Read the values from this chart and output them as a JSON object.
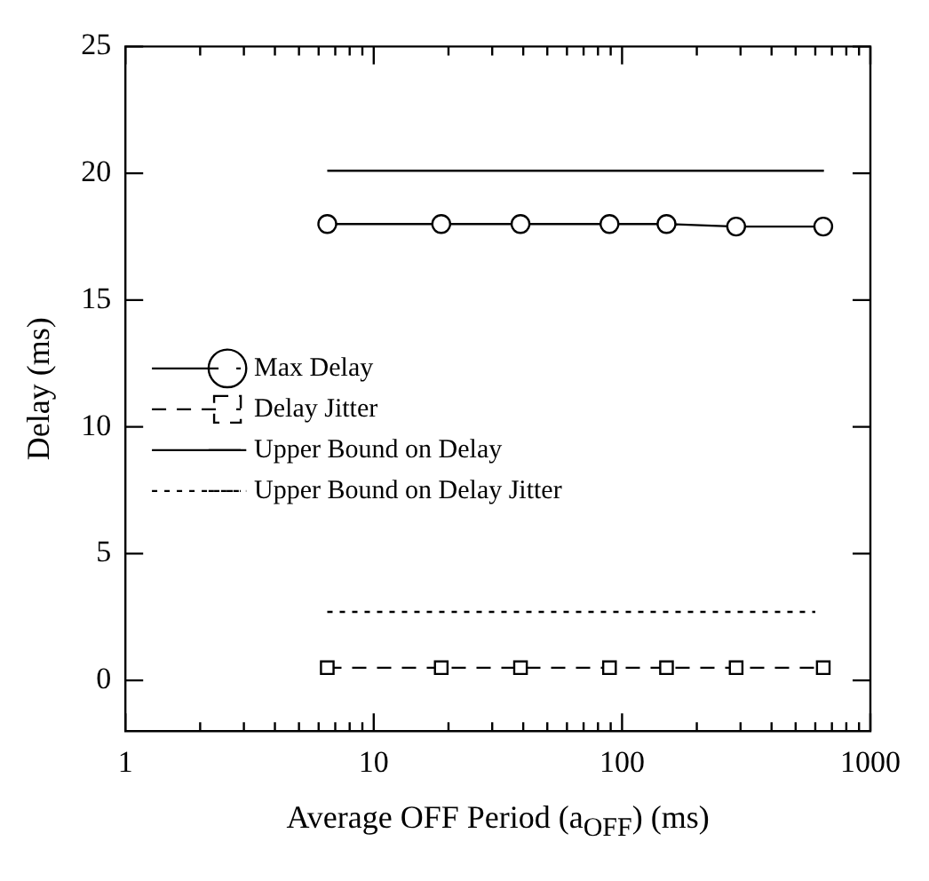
{
  "chart_data": {
    "type": "line",
    "xlabel": "Average OFF Period (a$_{OFF}$) (ms)",
    "ylabel": "Delay (ms)",
    "log": "x",
    "xlim": [
      1,
      1000
    ],
    "ylim": [
      -2,
      25
    ],
    "xticks": [
      1,
      {
        "value": 2,
        "label": null
      },
      {
        "value": 3,
        "label": null
      },
      {
        "value": 4,
        "label": null
      },
      {
        "value": 5,
        "label": null
      },
      {
        "value": 6,
        "label": null
      },
      {
        "value": 7,
        "label": null
      },
      {
        "value": 8,
        "label": null
      },
      {
        "value": 9,
        "label": null
      },
      10,
      {
        "value": 20,
        "label": null
      },
      {
        "value": 30,
        "label": null
      },
      {
        "value": 40,
        "label": null
      },
      {
        "value": 50,
        "label": null
      },
      {
        "value": 60,
        "label": null
      },
      {
        "value": 70,
        "label": null
      },
      {
        "value": 80,
        "label": null
      },
      {
        "value": 90,
        "label": null
      },
      100,
      {
        "value": 200,
        "label": null
      },
      {
        "value": 300,
        "label": null
      },
      {
        "value": 400,
        "label": null
      },
      {
        "value": 500,
        "label": null
      },
      {
        "value": 600,
        "label": null
      },
      {
        "value": 700,
        "label": null
      },
      {
        "value": 800,
        "label": null
      },
      {
        "value": 900,
        "label": null
      },
      1000
    ],
    "yticks": [
      0,
      5,
      10,
      15,
      20,
      25
    ],
    "grid": false,
    "legend": "left",
    "series": [
      {
        "name": "Max Delay",
        "color": "#000000",
        "marker": "circle",
        "line_style": "solid",
        "x": [
          6.5,
          18.7,
          39,
          89,
          151,
          288,
          646
        ],
        "values": [
          18.0,
          18.0,
          18.0,
          18.0,
          18.0,
          17.9,
          17.9
        ]
      },
      {
        "name": "Delay Jitter",
        "color": "#000000",
        "marker": "square",
        "line_style": "dashed",
        "x": [
          6.5,
          18.7,
          39,
          89,
          151,
          288,
          646
        ],
        "values": [
          0.5,
          0.5,
          0.5,
          0.5,
          0.5,
          0.5,
          0.5
        ]
      },
      {
        "name": "Upper Bound on Delay",
        "color": "#000000",
        "marker": "none",
        "line_style": "solid",
        "x": [
          6.5,
          650
        ],
        "values": [
          20.1,
          20.1
        ]
      },
      {
        "name": "Upper Bound on Delay Jitter",
        "color": "#000000",
        "marker": "none",
        "line_style": "dotted",
        "x": [
          6.5,
          600
        ],
        "values": [
          2.7,
          2.7
        ]
      }
    ]
  }
}
